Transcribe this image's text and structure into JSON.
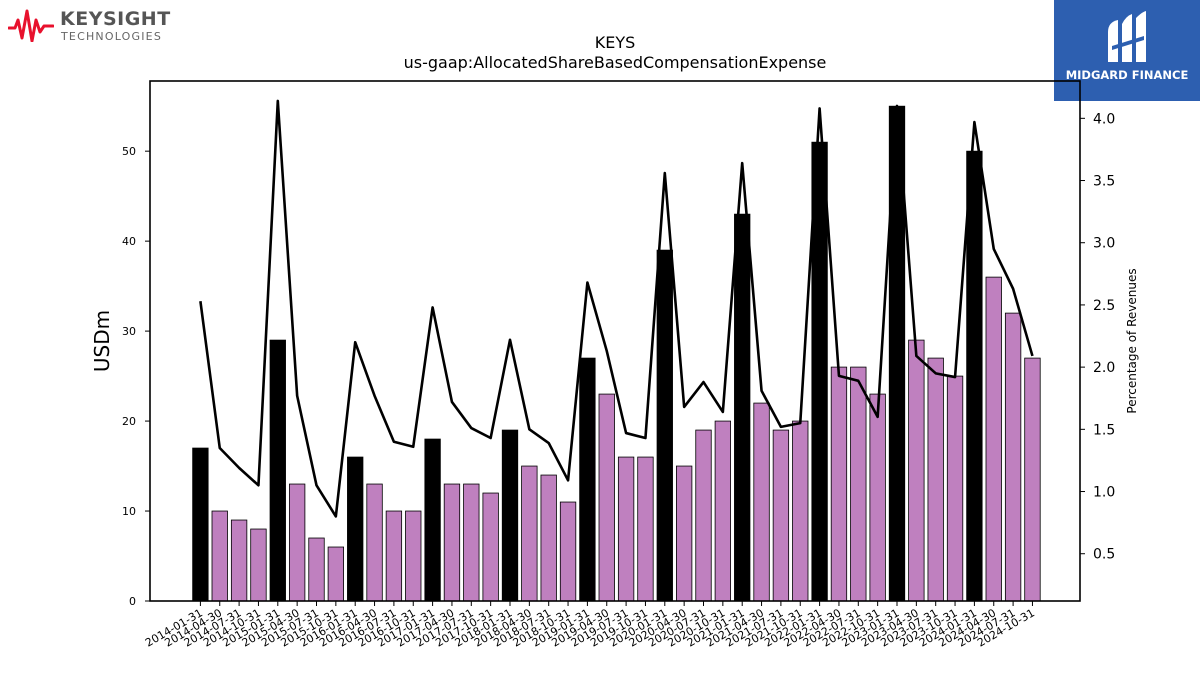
{
  "brand": {
    "name": "KEYSIGHT",
    "sub": "TECHNOLOGIES",
    "accent": "#e8112d"
  },
  "partner": {
    "name": "MIDGARD FINANCE",
    "bg": "#2d5fb0"
  },
  "chart_data": {
    "type": "bar",
    "title": "KEYS",
    "subtitle": "us-gaap:AllocatedShareBasedCompensationExpense",
    "ylabel": "USDm",
    "y2label": "Percentage of Revenues",
    "ylim": [
      0,
      57.8
    ],
    "y2lim": [
      0.12,
      4.3
    ],
    "yticks": [
      0,
      10,
      20,
      30,
      40,
      50
    ],
    "y2ticks": [
      0.5,
      1.0,
      1.5,
      2.0,
      2.5,
      3.0,
      3.5,
      4.0
    ],
    "categories": [
      "2014-01-31",
      "2014-04-30",
      "2014-07-31",
      "2014-10-31",
      "2015-01-31",
      "2015-04-30",
      "2015-07-31",
      "2015-10-31",
      "2016-01-31",
      "2016-04-30",
      "2016-07-31",
      "2016-10-31",
      "2017-01-31",
      "2017-04-30",
      "2017-07-31",
      "2017-10-31",
      "2018-01-31",
      "2018-04-30",
      "2018-07-31",
      "2018-10-31",
      "2019-01-31",
      "2019-04-30",
      "2019-07-31",
      "2019-10-31",
      "2020-01-31",
      "2020-04-30",
      "2020-07-31",
      "2020-10-31",
      "2021-01-31",
      "2021-04-30",
      "2021-07-31",
      "2021-10-31",
      "2022-01-31",
      "2022-04-30",
      "2022-07-31",
      "2022-10-31",
      "2023-01-31",
      "2023-04-30",
      "2023-07-31",
      "2023-10-31",
      "2024-01-31",
      "2024-04-30",
      "2024-07-31",
      "2024-10-31"
    ],
    "values": [
      17,
      10,
      9,
      8,
      29,
      13,
      7,
      6,
      16,
      13,
      10,
      10,
      18,
      13,
      13,
      12,
      19,
      15,
      14,
      11,
      27,
      23,
      16,
      16,
      39,
      15,
      19,
      20,
      43,
      22,
      19,
      20,
      51,
      26,
      26,
      23,
      55,
      29,
      27,
      25,
      50,
      36,
      32,
      27
    ],
    "highlight": [
      true,
      false,
      false,
      false,
      true,
      false,
      false,
      false,
      true,
      false,
      false,
      false,
      true,
      false,
      false,
      false,
      true,
      false,
      false,
      false,
      true,
      false,
      false,
      false,
      true,
      false,
      false,
      false,
      true,
      false,
      false,
      false,
      true,
      false,
      false,
      false,
      true,
      false,
      false,
      false,
      true,
      false,
      false,
      false
    ],
    "pct_revenue": [
      2.53,
      1.35,
      1.19,
      1.05,
      4.14,
      1.77,
      1.05,
      0.8,
      2.2,
      1.77,
      1.4,
      1.36,
      2.48,
      1.72,
      1.51,
      1.43,
      2.22,
      1.5,
      1.39,
      1.09,
      2.68,
      2.13,
      1.47,
      1.43,
      3.56,
      1.68,
      1.88,
      1.64,
      3.64,
      1.81,
      1.52,
      1.55,
      4.08,
      1.93,
      1.89,
      1.6,
      4.1,
      2.09,
      1.95,
      1.92,
      3.97,
      2.95,
      2.63,
      2.09
    ],
    "colors": {
      "highlight": "#000000",
      "normal": "#bf80bf",
      "line": "#000000"
    }
  }
}
